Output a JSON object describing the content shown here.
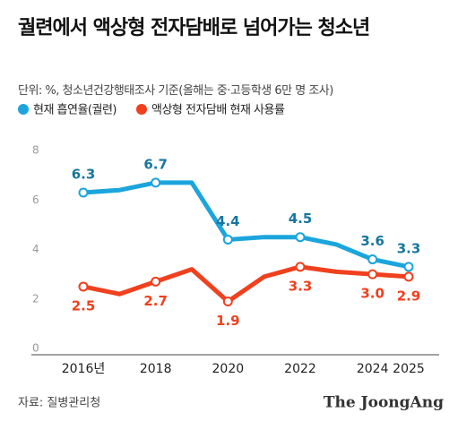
{
  "chart_data": {
    "type": "line",
    "title": "궐련에서 액상형 전자담배로 넘어가는 청소년",
    "subtitle": "단위: %, 청소년건강행태조사 기준(올해는 중·고등학생 6만 명 조사)",
    "categories": [
      "2016년",
      null,
      "2018",
      null,
      "2020",
      null,
      "2022",
      null,
      "2024",
      "2025"
    ],
    "series": [
      {
        "name": "현재 흡연율(궐련)",
        "color": "#1ba5dc",
        "values": [
          6.3,
          6.4,
          6.7,
          6.7,
          4.4,
          4.5,
          4.5,
          4.2,
          3.6,
          3.3
        ],
        "value_labels": [
          "6.3",
          null,
          "6.7",
          null,
          "4.4",
          null,
          "4.5",
          null,
          "3.6",
          "3.3"
        ]
      },
      {
        "name": "액상형 전자담배 현재 사용률",
        "color": "#f0401e",
        "values": [
          2.5,
          2.2,
          2.7,
          3.2,
          1.9,
          2.9,
          3.3,
          3.1,
          3.0,
          2.9
        ],
        "value_labels": [
          "2.5",
          null,
          "2.7",
          null,
          "1.9",
          null,
          "3.3",
          null,
          "3.0",
          "2.9"
        ]
      }
    ],
    "ylim": [
      0,
      8
    ],
    "yticks": [
      0,
      2,
      4,
      6,
      8
    ],
    "grid": false,
    "source": "자료: 질병관리청",
    "logo": "The JoongAng"
  }
}
